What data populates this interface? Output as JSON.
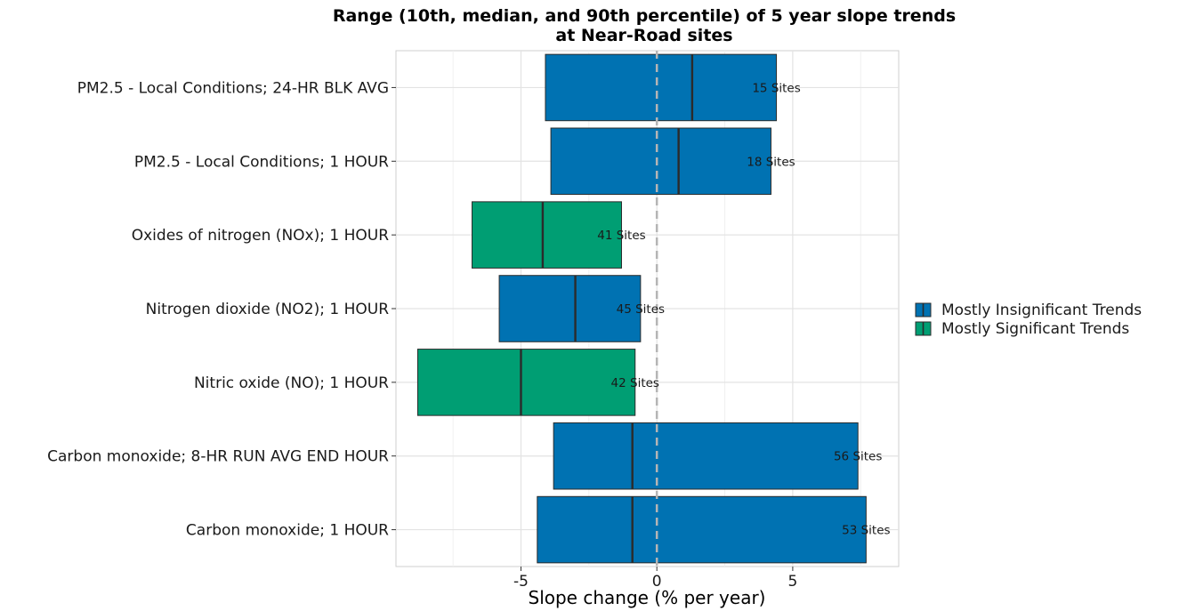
{
  "chart_data": {
    "type": "bar",
    "title": "Range (10th, median, and 90th percentile) of 5 year slope trends",
    "subtitle": "at Near-Road sites",
    "xlabel": "Slope change (% per year)",
    "ylabel": "",
    "xlim": [
      -9.6,
      8.9
    ],
    "xticks": [
      -5,
      0,
      5
    ],
    "xtick_labels": [
      "-5",
      "0",
      "5"
    ],
    "reference_line": 0,
    "grid": true,
    "legend_position": "right",
    "legend": [
      {
        "name": "Mostly Insignificant Trends",
        "color": "#0072b2"
      },
      {
        "name": "Mostly Significant Trends",
        "color": "#009e73"
      }
    ],
    "categories": [
      {
        "label": "PM2.5 - Local Conditions; 24-HR BLK AVG",
        "p10": -4.1,
        "median": 1.3,
        "p90": 4.4,
        "sites_label": "15 Sites",
        "group": "Mostly Insignificant Trends"
      },
      {
        "label": "PM2.5 - Local Conditions; 1 HOUR",
        "p10": -3.9,
        "median": 0.8,
        "p90": 4.2,
        "sites_label": "18 Sites",
        "group": "Mostly Insignificant Trends"
      },
      {
        "label": "Oxides of nitrogen (NOx); 1 HOUR",
        "p10": -6.8,
        "median": -4.2,
        "p90": -1.3,
        "sites_label": "41 Sites",
        "group": "Mostly Significant Trends"
      },
      {
        "label": "Nitrogen dioxide (NO2); 1 HOUR",
        "p10": -5.8,
        "median": -3.0,
        "p90": -0.6,
        "sites_label": "45 Sites",
        "group": "Mostly Insignificant Trends"
      },
      {
        "label": "Nitric oxide (NO); 1 HOUR",
        "p10": -8.8,
        "median": -5.0,
        "p90": -0.8,
        "sites_label": "42 Sites",
        "group": "Mostly Significant Trends"
      },
      {
        "label": "Carbon monoxide; 8-HR RUN AVG END HOUR",
        "p10": -3.8,
        "median": -0.9,
        "p90": 7.4,
        "sites_label": "56 Sites",
        "group": "Mostly Insignificant Trends"
      },
      {
        "label": "Carbon monoxide; 1 HOUR",
        "p10": -4.4,
        "median": -0.9,
        "p90": 7.7,
        "sites_label": "53 Sites",
        "group": "Mostly Insignificant Trends"
      }
    ]
  }
}
